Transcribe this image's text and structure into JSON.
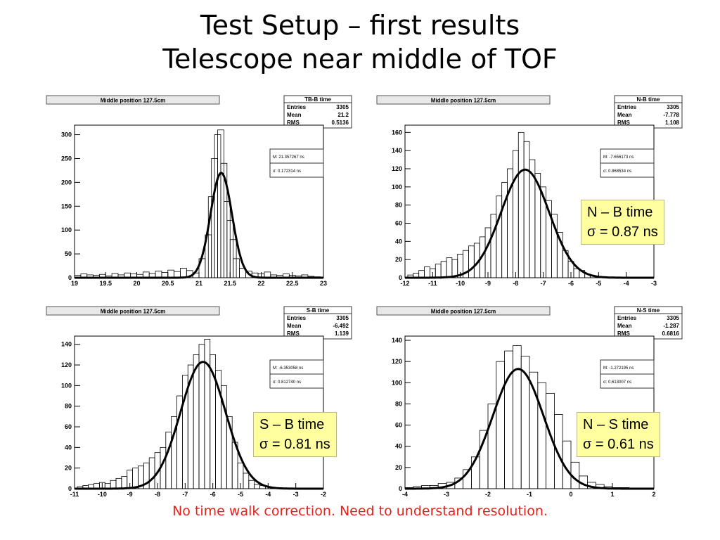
{
  "slide": {
    "title_line1": "Test Setup – first results",
    "title_line2": "Telescope near middle of TOF",
    "footer": "No time walk correction.  Need to understand resolution."
  },
  "colors": {
    "footer": "#e8201a",
    "box_bg": "#ffffa0",
    "curve": "#000000"
  },
  "chart_data": [
    {
      "type": "bar",
      "title": "Middle position 127.5cm",
      "stats": {
        "name": "TB-B time",
        "entries": "3305",
        "mean": "21.2",
        "rms": "0.5136"
      },
      "fit": {
        "m_label": "M: 21.357267 ns",
        "s_label": "σ: 0.172314 ns",
        "m": 21.357267,
        "sigma": 0.172314,
        "amp": 220
      },
      "xlim": [
        19,
        23
      ],
      "ylim": [
        0,
        320
      ],
      "xticks": [
        19,
        19.5,
        20,
        20.5,
        21,
        21.5,
        22,
        22.5,
        23
      ],
      "yticks": [
        0,
        50,
        100,
        150,
        200,
        250,
        300
      ],
      "x": [
        19.05,
        19.15,
        19.25,
        19.35,
        19.45,
        19.55,
        19.65,
        19.75,
        19.85,
        19.95,
        20.05,
        20.15,
        20.25,
        20.35,
        20.45,
        20.55,
        20.65,
        20.75,
        20.85,
        20.95,
        21.05,
        21.15,
        21.2,
        21.25,
        21.3,
        21.35,
        21.4,
        21.45,
        21.5,
        21.55,
        21.6,
        21.7,
        21.8,
        21.9,
        22.0,
        22.1,
        22.2,
        22.3,
        22.4,
        22.5,
        22.6,
        22.7,
        22.8,
        22.9
      ],
      "values": [
        5,
        8,
        6,
        5,
        7,
        4,
        9,
        6,
        10,
        8,
        7,
        12,
        9,
        14,
        11,
        16,
        13,
        20,
        15,
        10,
        40,
        90,
        170,
        250,
        300,
        310,
        240,
        160,
        120,
        80,
        40,
        20,
        14,
        10,
        8,
        12,
        6,
        5,
        8,
        5,
        4,
        6,
        3,
        2
      ]
    },
    {
      "type": "bar",
      "title": "Middle position 127.5cm",
      "stats": {
        "name": "N-B time",
        "entries": "3305",
        "mean": "-7.778",
        "rms": "1.108"
      },
      "fit": {
        "m_label": "M: -7.656173 ns",
        "s_label": "σ: 0.868534 ns",
        "m": -7.656173,
        "sigma": 0.868534,
        "amp": 119
      },
      "xlim": [
        -12,
        -3
      ],
      "ylim": [
        0,
        168
      ],
      "xticks": [
        -12,
        -11,
        -10,
        -9,
        -8,
        -7,
        -6,
        -5,
        -4,
        -3
      ],
      "yticks": [
        0,
        20,
        40,
        60,
        80,
        100,
        120,
        140,
        160
      ],
      "x": [
        -11.8,
        -11.6,
        -11.4,
        -11.2,
        -11.0,
        -10.8,
        -10.6,
        -10.4,
        -10.2,
        -10.0,
        -9.8,
        -9.6,
        -9.4,
        -9.2,
        -9.0,
        -8.8,
        -8.6,
        -8.4,
        -8.2,
        -8.0,
        -7.8,
        -7.6,
        -7.4,
        -7.2,
        -7.0,
        -6.8,
        -6.6,
        -6.4,
        -6.2,
        -6.0,
        -5.8,
        -5.6,
        -5.4,
        -5.2,
        -5.0,
        -4.8,
        -4.6,
        -4.4
      ],
      "values": [
        3,
        5,
        8,
        12,
        10,
        15,
        18,
        22,
        20,
        26,
        30,
        35,
        38,
        45,
        55,
        70,
        90,
        105,
        120,
        140,
        160,
        150,
        130,
        115,
        100,
        85,
        70,
        50,
        30,
        18,
        10,
        8,
        4,
        2,
        1,
        1,
        0,
        0
      ]
    },
    {
      "type": "bar",
      "title": "Middle position 127.5cm",
      "stats": {
        "name": "S-B time",
        "entries": "3305",
        "mean": "-6.492",
        "rms": "1.139"
      },
      "fit": {
        "m_label": "M: -6.353058 ns",
        "s_label": "σ: 0.812740 ns",
        "m": -6.353058,
        "sigma": 0.81274,
        "amp": 123
      },
      "xlim": [
        -11,
        -2
      ],
      "ylim": [
        0,
        148
      ],
      "xticks": [
        -11,
        -10,
        -9,
        -8,
        -7,
        -6,
        -5,
        -4,
        -3,
        -2
      ],
      "yticks": [
        0,
        20,
        40,
        60,
        80,
        100,
        120,
        140
      ],
      "x": [
        -10.8,
        -10.6,
        -10.4,
        -10.2,
        -10.0,
        -9.8,
        -9.6,
        -9.4,
        -9.2,
        -9.0,
        -8.8,
        -8.6,
        -8.4,
        -8.2,
        -8.0,
        -7.8,
        -7.6,
        -7.4,
        -7.2,
        -7.0,
        -6.8,
        -6.6,
        -6.4,
        -6.2,
        -6.0,
        -5.8,
        -5.6,
        -5.4,
        -5.2,
        -5.0,
        -4.8,
        -4.6,
        -4.4,
        -4.2,
        -4.0,
        -3.8,
        -3.6
      ],
      "values": [
        2,
        3,
        4,
        5,
        6,
        5,
        8,
        10,
        12,
        18,
        20,
        22,
        25,
        30,
        35,
        40,
        55,
        70,
        90,
        110,
        120,
        130,
        140,
        145,
        130,
        115,
        100,
        70,
        45,
        25,
        15,
        8,
        4,
        3,
        2,
        1,
        1
      ]
    },
    {
      "type": "bar",
      "title": "Middle position 127.5cm",
      "stats": {
        "name": "N-S time",
        "entries": "3305",
        "mean": "-1.287",
        "rms": "0.6816"
      },
      "fit": {
        "m_label": "M: -1.272195 ns",
        "s_label": "σ: 0.613007 ns",
        "m": -1.272195,
        "sigma": 0.613007,
        "amp": 113
      },
      "xlim": [
        -4,
        2
      ],
      "ylim": [
        0,
        144
      ],
      "xticks": [
        -4,
        -3,
        -2,
        -1,
        0,
        1,
        2
      ],
      "yticks": [
        0,
        20,
        40,
        60,
        80,
        100,
        120,
        140
      ],
      "x": [
        -3.9,
        -3.7,
        -3.5,
        -3.3,
        -3.1,
        -2.9,
        -2.7,
        -2.5,
        -2.3,
        -2.1,
        -1.9,
        -1.7,
        -1.5,
        -1.3,
        -1.1,
        -0.9,
        -0.7,
        -0.5,
        -0.3,
        -0.1,
        0.1,
        0.3,
        0.5,
        0.7,
        0.9,
        1.1,
        1.3,
        1.5,
        1.7,
        1.9
      ],
      "values": [
        1,
        2,
        3,
        3,
        5,
        6,
        10,
        18,
        30,
        55,
        80,
        120,
        130,
        135,
        125,
        110,
        100,
        90,
        70,
        45,
        25,
        12,
        6,
        4,
        2,
        1,
        1,
        0,
        0,
        0
      ]
    }
  ],
  "result_boxes": [
    {
      "line1": "N – B time",
      "line2": "σ = 0.87 ns"
    },
    {
      "line1": "S – B time",
      "line2": "σ = 0.81 ns"
    },
    {
      "line1": "N – S time",
      "line2": "σ = 0.61 ns"
    }
  ]
}
